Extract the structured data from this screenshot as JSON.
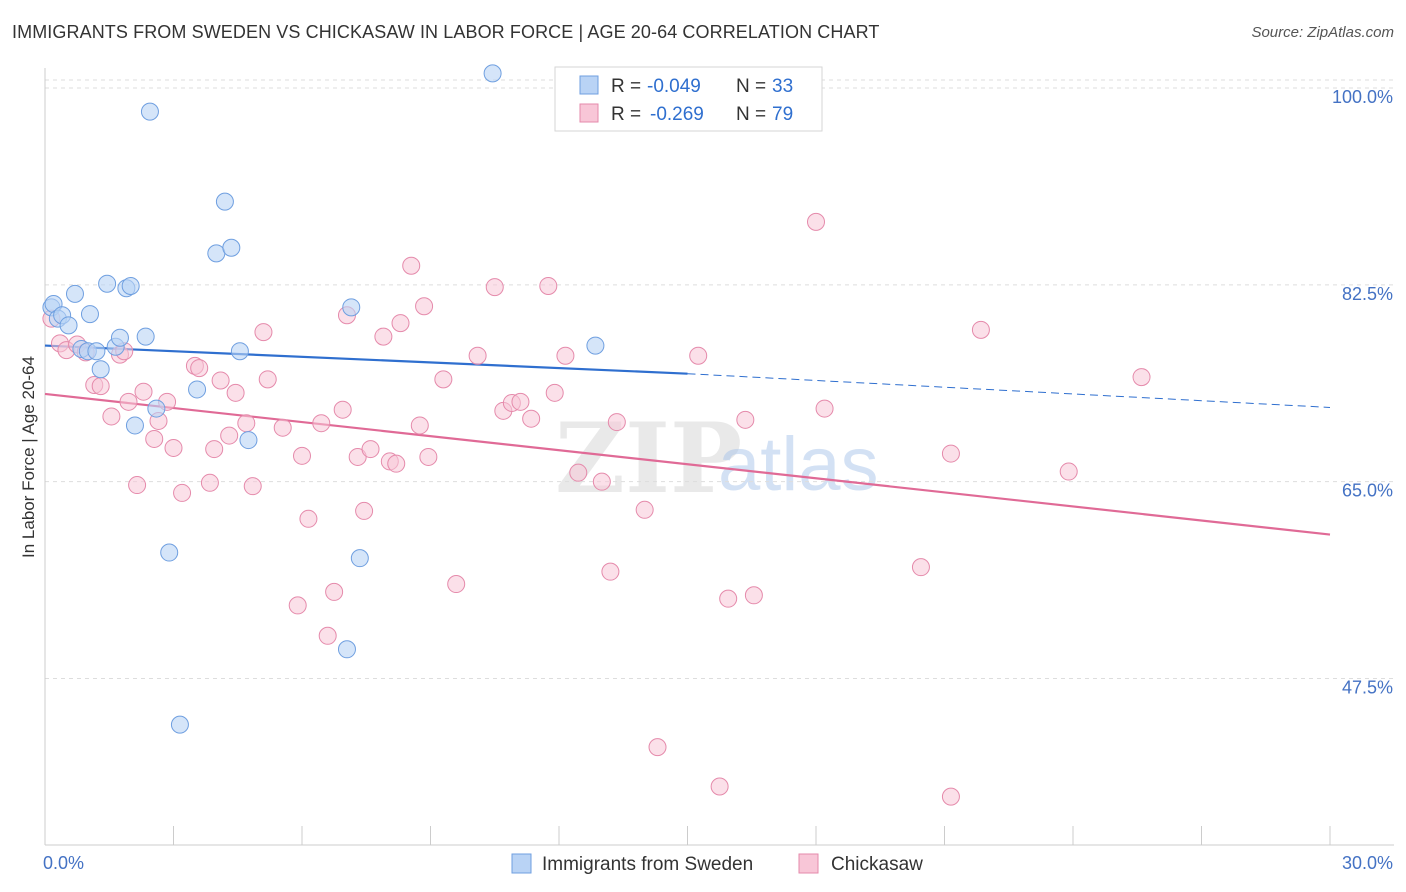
{
  "title": "IMMIGRANTS FROM SWEDEN VS CHICKASAW IN LABOR FORCE | AGE 20-64 CORRELATION CHART",
  "source": "Source: ZipAtlas.com",
  "watermark": {
    "zip": "ZIP",
    "atlas": "atlas"
  },
  "colors": {
    "sweden_fill": "#b9d3f5",
    "sweden_stroke": "#6f9fe0",
    "sweden_line": "#2f6fcf",
    "chickasaw_fill": "#f8c6d7",
    "chickasaw_stroke": "#e58aab",
    "chickasaw_line": "#e06a96",
    "tick": "#4472c4",
    "grid": "#dddddd"
  },
  "legend": {
    "rows": [
      {
        "r_label": "R =",
        "r_value": "-0.049",
        "n_label": "N =",
        "n_value": "33"
      },
      {
        "r_label": "R =",
        "r_value": "-0.269",
        "n_label": "N =",
        "n_value": "79"
      }
    ]
  },
  "chart_data": {
    "type": "scatter",
    "title": "IMMIGRANTS FROM SWEDEN VS CHICKASAW IN LABOR FORCE | AGE 20-64 CORRELATION CHART",
    "xlabel": "",
    "ylabel": "In Labor Force | Age 20-64",
    "xlim": [
      0,
      30
    ],
    "ylim": [
      32.7,
      101.6
    ],
    "x_tick_labels": [
      "0.0%",
      "30.0%"
    ],
    "y_ticks": [
      47.5,
      65.0,
      82.5,
      100.0
    ],
    "y_tick_labels": [
      "47.5%",
      "65.0%",
      "82.5%",
      "100.0%"
    ],
    "grid": "horizontal dashed",
    "legend_position": "top-center",
    "series": [
      {
        "name": "Immigrants from Sweden",
        "trend": {
          "x": [
            0.0,
            15.0
          ],
          "y": [
            77.1,
            74.6
          ],
          "dashed_extension": {
            "x": [
              15.0,
              30.0
            ],
            "y": [
              74.6,
              71.6
            ]
          }
        },
        "points": [
          [
            0.15,
            80.5
          ],
          [
            0.2,
            80.8
          ],
          [
            0.3,
            79.5
          ],
          [
            0.4,
            79.8
          ],
          [
            0.55,
            78.9
          ],
          [
            0.7,
            81.7
          ],
          [
            0.85,
            76.8
          ],
          [
            1.0,
            76.6
          ],
          [
            1.05,
            79.9
          ],
          [
            1.2,
            76.6
          ],
          [
            1.3,
            75.0
          ],
          [
            1.45,
            82.6
          ],
          [
            1.65,
            77.0
          ],
          [
            1.75,
            77.8
          ],
          [
            1.9,
            82.2
          ],
          [
            2.0,
            82.4
          ],
          [
            2.1,
            70.0
          ],
          [
            2.35,
            77.9
          ],
          [
            2.45,
            97.9
          ],
          [
            2.6,
            71.5
          ],
          [
            2.9,
            58.7
          ],
          [
            3.15,
            43.4
          ],
          [
            3.55,
            73.2
          ],
          [
            4.0,
            85.3
          ],
          [
            4.2,
            89.9
          ],
          [
            4.35,
            85.8
          ],
          [
            4.55,
            76.6
          ],
          [
            4.75,
            68.7
          ],
          [
            7.05,
            50.1
          ],
          [
            7.15,
            80.5
          ],
          [
            7.35,
            58.2
          ],
          [
            10.45,
            101.3
          ],
          [
            12.85,
            77.1
          ]
        ]
      },
      {
        "name": "Chickasaw",
        "trend": {
          "x": [
            0.0,
            30.0
          ],
          "y": [
            72.8,
            60.3
          ]
        },
        "points": [
          [
            0.15,
            79.5
          ],
          [
            0.35,
            77.3
          ],
          [
            0.5,
            76.7
          ],
          [
            0.75,
            77.2
          ],
          [
            0.95,
            76.5
          ],
          [
            1.15,
            73.6
          ],
          [
            1.3,
            73.5
          ],
          [
            1.55,
            70.8
          ],
          [
            1.75,
            76.3
          ],
          [
            1.95,
            72.1
          ],
          [
            2.15,
            64.7
          ],
          [
            2.3,
            73.0
          ],
          [
            2.55,
            68.8
          ],
          [
            2.65,
            70.4
          ],
          [
            2.85,
            72.1
          ],
          [
            3.0,
            68.0
          ],
          [
            3.2,
            64.0
          ],
          [
            3.5,
            75.3
          ],
          [
            3.6,
            75.1
          ],
          [
            3.85,
            64.9
          ],
          [
            3.95,
            67.9
          ],
          [
            4.1,
            74.0
          ],
          [
            4.3,
            69.1
          ],
          [
            4.45,
            72.9
          ],
          [
            4.7,
            70.2
          ],
          [
            4.85,
            64.6
          ],
          [
            5.1,
            78.3
          ],
          [
            5.2,
            74.1
          ],
          [
            5.55,
            69.8
          ],
          [
            5.9,
            54.0
          ],
          [
            6.0,
            67.3
          ],
          [
            6.15,
            61.7
          ],
          [
            6.45,
            70.2
          ],
          [
            6.6,
            51.3
          ],
          [
            6.75,
            55.2
          ],
          [
            6.95,
            71.4
          ],
          [
            7.05,
            79.8
          ],
          [
            7.3,
            67.2
          ],
          [
            7.45,
            62.4
          ],
          [
            7.6,
            67.9
          ],
          [
            7.9,
            77.9
          ],
          [
            8.05,
            66.8
          ],
          [
            8.2,
            66.6
          ],
          [
            8.3,
            79.1
          ],
          [
            8.55,
            84.2
          ],
          [
            8.75,
            70.0
          ],
          [
            8.85,
            80.6
          ],
          [
            8.95,
            67.2
          ],
          [
            9.3,
            74.1
          ],
          [
            9.6,
            55.9
          ],
          [
            10.1,
            76.2
          ],
          [
            10.5,
            82.3
          ],
          [
            10.7,
            71.3
          ],
          [
            10.9,
            72.0
          ],
          [
            11.1,
            72.1
          ],
          [
            11.35,
            70.6
          ],
          [
            11.75,
            82.4
          ],
          [
            11.9,
            72.9
          ],
          [
            12.15,
            76.2
          ],
          [
            12.45,
            65.8
          ],
          [
            13.0,
            65.0
          ],
          [
            13.2,
            57.0
          ],
          [
            13.35,
            70.3
          ],
          [
            14.0,
            62.5
          ],
          [
            14.3,
            41.4
          ],
          [
            15.25,
            76.2
          ],
          [
            15.75,
            37.9
          ],
          [
            15.95,
            54.6
          ],
          [
            16.35,
            70.5
          ],
          [
            16.55,
            54.9
          ],
          [
            18.0,
            88.1
          ],
          [
            18.2,
            71.5
          ],
          [
            20.45,
            57.4
          ],
          [
            21.15,
            67.5
          ],
          [
            21.15,
            37.0
          ],
          [
            21.85,
            78.5
          ],
          [
            23.9,
            65.9
          ],
          [
            25.6,
            74.3
          ],
          [
            1.85,
            76.6
          ]
        ]
      }
    ]
  },
  "bottom_legend": [
    {
      "label": "Immigrants from Sweden"
    },
    {
      "label": "Chickasaw"
    }
  ]
}
